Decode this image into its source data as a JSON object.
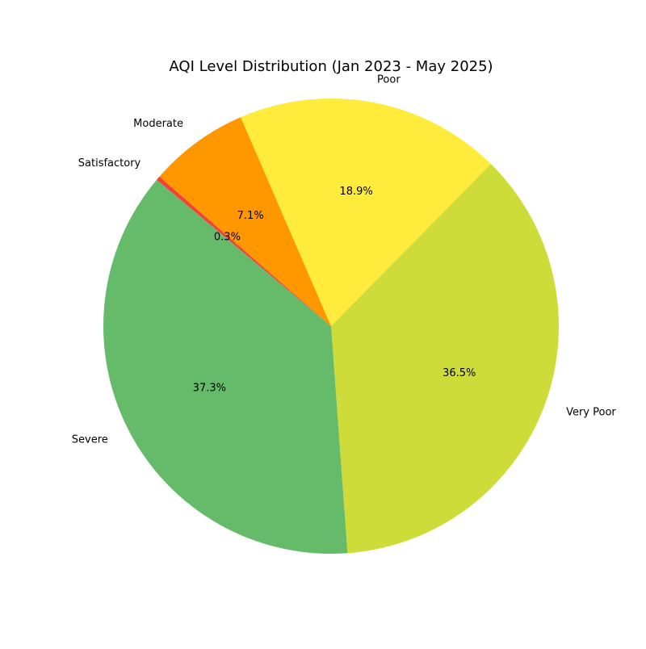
{
  "chart_data": {
    "type": "pie",
    "title": "AQI Level Distribution (Jan 2023 - May 2025)",
    "slices": [
      {
        "label": "Satisfactory",
        "value": 0.3,
        "pct_label": "0.3%",
        "color": "#f44336"
      },
      {
        "label": "Moderate",
        "value": 7.1,
        "pct_label": "7.1%",
        "color": "#ff9800"
      },
      {
        "label": "Poor",
        "value": 18.9,
        "pct_label": "18.9%",
        "color": "#ffeb3b"
      },
      {
        "label": "Very Poor",
        "value": 36.5,
        "pct_label": "36.5%",
        "color": "#cddc39"
      },
      {
        "label": "Severe",
        "value": 37.3,
        "pct_label": "37.3%",
        "color": "#66bb6a"
      }
    ],
    "start_angle_deg": 140,
    "direction": "clockwise",
    "legend": false
  }
}
